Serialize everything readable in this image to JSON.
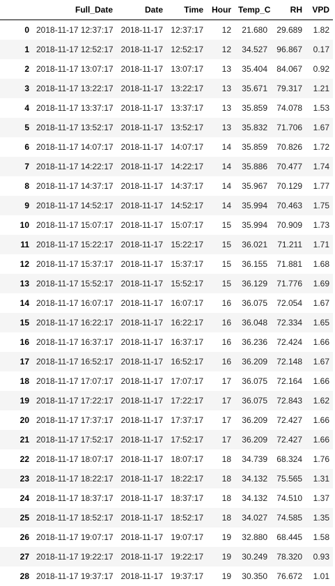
{
  "table": {
    "columns": [
      "",
      "Full_Date",
      "Date",
      "Time",
      "Hour",
      "Temp_C",
      "RH",
      "VPD"
    ],
    "rows": [
      [
        "0",
        "2018-11-17 12:37:17",
        "2018-11-17",
        "12:37:17",
        "12",
        "21.680",
        "29.689",
        "1.82"
      ],
      [
        "1",
        "2018-11-17 12:52:17",
        "2018-11-17",
        "12:52:17",
        "12",
        "34.527",
        "96.867",
        "0.17"
      ],
      [
        "2",
        "2018-11-17 13:07:17",
        "2018-11-17",
        "13:07:17",
        "13",
        "35.404",
        "84.067",
        "0.92"
      ],
      [
        "3",
        "2018-11-17 13:22:17",
        "2018-11-17",
        "13:22:17",
        "13",
        "35.671",
        "79.317",
        "1.21"
      ],
      [
        "4",
        "2018-11-17 13:37:17",
        "2018-11-17",
        "13:37:17",
        "13",
        "35.859",
        "74.078",
        "1.53"
      ],
      [
        "5",
        "2018-11-17 13:52:17",
        "2018-11-17",
        "13:52:17",
        "13",
        "35.832",
        "71.706",
        "1.67"
      ],
      [
        "6",
        "2018-11-17 14:07:17",
        "2018-11-17",
        "14:07:17",
        "14",
        "35.859",
        "70.826",
        "1.72"
      ],
      [
        "7",
        "2018-11-17 14:22:17",
        "2018-11-17",
        "14:22:17",
        "14",
        "35.886",
        "70.477",
        "1.74"
      ],
      [
        "8",
        "2018-11-17 14:37:17",
        "2018-11-17",
        "14:37:17",
        "14",
        "35.967",
        "70.129",
        "1.77"
      ],
      [
        "9",
        "2018-11-17 14:52:17",
        "2018-11-17",
        "14:52:17",
        "14",
        "35.994",
        "70.463",
        "1.75"
      ],
      [
        "10",
        "2018-11-17 15:07:17",
        "2018-11-17",
        "15:07:17",
        "15",
        "35.994",
        "70.909",
        "1.73"
      ],
      [
        "11",
        "2018-11-17 15:22:17",
        "2018-11-17",
        "15:22:17",
        "15",
        "36.021",
        "71.211",
        "1.71"
      ],
      [
        "12",
        "2018-11-17 15:37:17",
        "2018-11-17",
        "15:37:17",
        "15",
        "36.155",
        "71.881",
        "1.68"
      ],
      [
        "13",
        "2018-11-17 15:52:17",
        "2018-11-17",
        "15:52:17",
        "15",
        "36.129",
        "71.776",
        "1.69"
      ],
      [
        "14",
        "2018-11-17 16:07:17",
        "2018-11-17",
        "16:07:17",
        "16",
        "36.075",
        "72.054",
        "1.67"
      ],
      [
        "15",
        "2018-11-17 16:22:17",
        "2018-11-17",
        "16:22:17",
        "16",
        "36.048",
        "72.334",
        "1.65"
      ],
      [
        "16",
        "2018-11-17 16:37:17",
        "2018-11-17",
        "16:37:17",
        "16",
        "36.236",
        "72.424",
        "1.66"
      ],
      [
        "17",
        "2018-11-17 16:52:17",
        "2018-11-17",
        "16:52:17",
        "16",
        "36.209",
        "72.148",
        "1.67"
      ],
      [
        "18",
        "2018-11-17 17:07:17",
        "2018-11-17",
        "17:07:17",
        "17",
        "36.075",
        "72.164",
        "1.66"
      ],
      [
        "19",
        "2018-11-17 17:22:17",
        "2018-11-17",
        "17:22:17",
        "17",
        "36.075",
        "72.843",
        "1.62"
      ],
      [
        "20",
        "2018-11-17 17:37:17",
        "2018-11-17",
        "17:37:17",
        "17",
        "36.209",
        "72.427",
        "1.66"
      ],
      [
        "21",
        "2018-11-17 17:52:17",
        "2018-11-17",
        "17:52:17",
        "17",
        "36.209",
        "72.427",
        "1.66"
      ],
      [
        "22",
        "2018-11-17 18:07:17",
        "2018-11-17",
        "18:07:17",
        "18",
        "34.739",
        "68.324",
        "1.76"
      ],
      [
        "23",
        "2018-11-17 18:22:17",
        "2018-11-17",
        "18:22:17",
        "18",
        "34.132",
        "75.565",
        "1.31"
      ],
      [
        "24",
        "2018-11-17 18:37:17",
        "2018-11-17",
        "18:37:17",
        "18",
        "34.132",
        "74.510",
        "1.37"
      ],
      [
        "25",
        "2018-11-17 18:52:17",
        "2018-11-17",
        "18:52:17",
        "18",
        "34.027",
        "74.585",
        "1.35"
      ],
      [
        "26",
        "2018-11-17 19:07:17",
        "2018-11-17",
        "19:07:17",
        "19",
        "32.880",
        "68.445",
        "1.58"
      ],
      [
        "27",
        "2018-11-17 19:22:17",
        "2018-11-17",
        "19:22:17",
        "19",
        "30.249",
        "78.320",
        "0.93"
      ],
      [
        "28",
        "2018-11-17 19:37:17",
        "2018-11-17",
        "19:37:17",
        "19",
        "30.350",
        "76.672",
        "1.01"
      ]
    ]
  }
}
